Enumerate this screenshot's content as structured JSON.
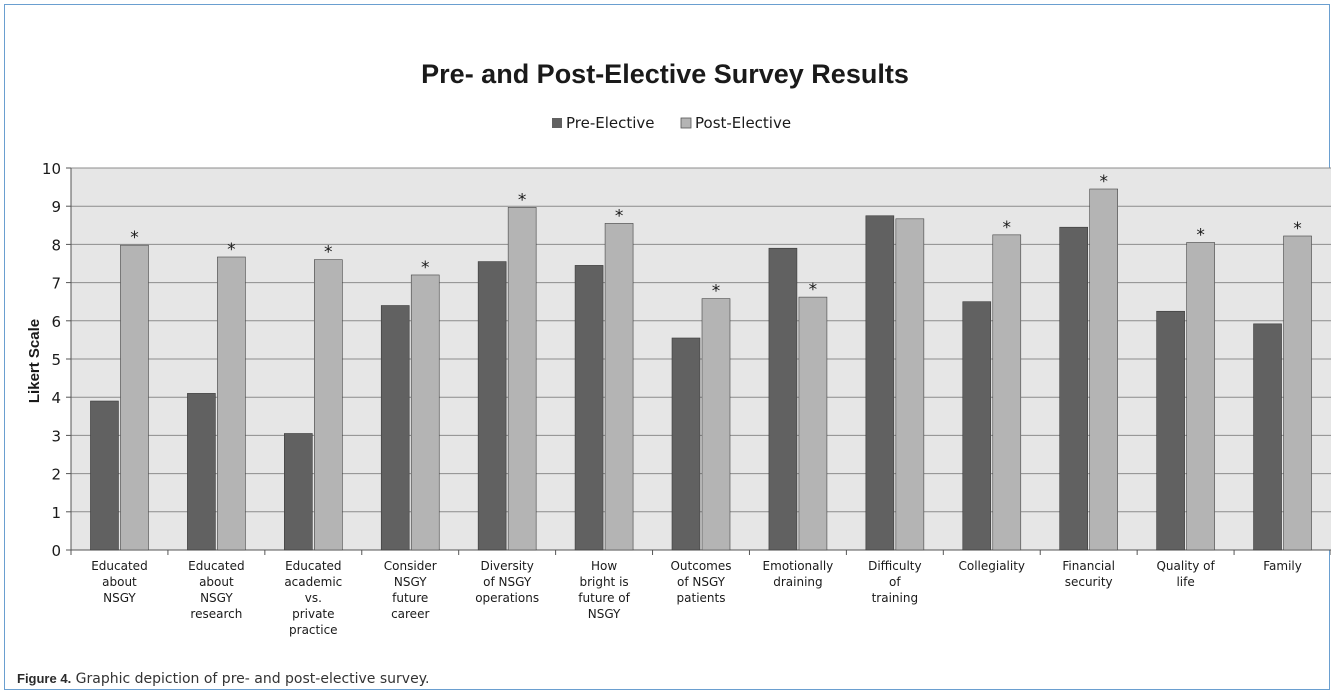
{
  "colors": {
    "pre": "#616161",
    "post": "#b4b4b4",
    "plot_bg": "#e6e6e6",
    "grid": "#8c8c8c",
    "frame": "#6a9fd0"
  },
  "chart_data": {
    "type": "bar",
    "title": "Pre- and Post-Elective Survey Results",
    "xlabel": "",
    "ylabel": "Likert Scale",
    "ylim": [
      0,
      10
    ],
    "yticks": [
      "0",
      "1",
      "2",
      "3",
      "4",
      "5",
      "6",
      "7",
      "8",
      "9",
      "10"
    ],
    "grid": true,
    "legend_position": "top-center",
    "categories": [
      [
        "Educated",
        "about",
        "NSGY"
      ],
      [
        "Educated",
        "about",
        "NSGY",
        "research"
      ],
      [
        "Educated",
        "academic",
        "vs.",
        "private",
        "practice"
      ],
      [
        "Consider",
        "NSGY",
        "future",
        "career"
      ],
      [
        "Diversity",
        "of NSGY",
        "operations"
      ],
      [
        "How",
        "bright is",
        "future of",
        "NSGY"
      ],
      [
        "Outcomes",
        "of NSGY",
        "patients"
      ],
      [
        "Emotionally",
        "draining"
      ],
      [
        "Difficulty",
        "of",
        "training"
      ],
      [
        "Collegiality"
      ],
      [
        "Financial",
        "security"
      ],
      [
        "Quality of",
        "life"
      ],
      [
        "Family"
      ]
    ],
    "series": [
      {
        "name": "Pre-Elective",
        "values": [
          3.9,
          4.1,
          3.05,
          6.4,
          7.55,
          7.45,
          5.55,
          7.9,
          8.75,
          6.5,
          8.45,
          6.25,
          5.92
        ]
      },
      {
        "name": "Post-Elective",
        "values": [
          7.98,
          7.67,
          7.6,
          7.2,
          8.97,
          8.55,
          6.58,
          6.62,
          8.67,
          8.25,
          9.45,
          8.05,
          8.22
        ]
      }
    ],
    "significance_marker": "*",
    "significant": [
      true,
      true,
      true,
      true,
      true,
      true,
      true,
      true,
      false,
      true,
      true,
      true,
      true
    ]
  },
  "caption": {
    "label": "Figure 4.",
    "text": "Graphic depiction of pre- and post-elective survey."
  }
}
